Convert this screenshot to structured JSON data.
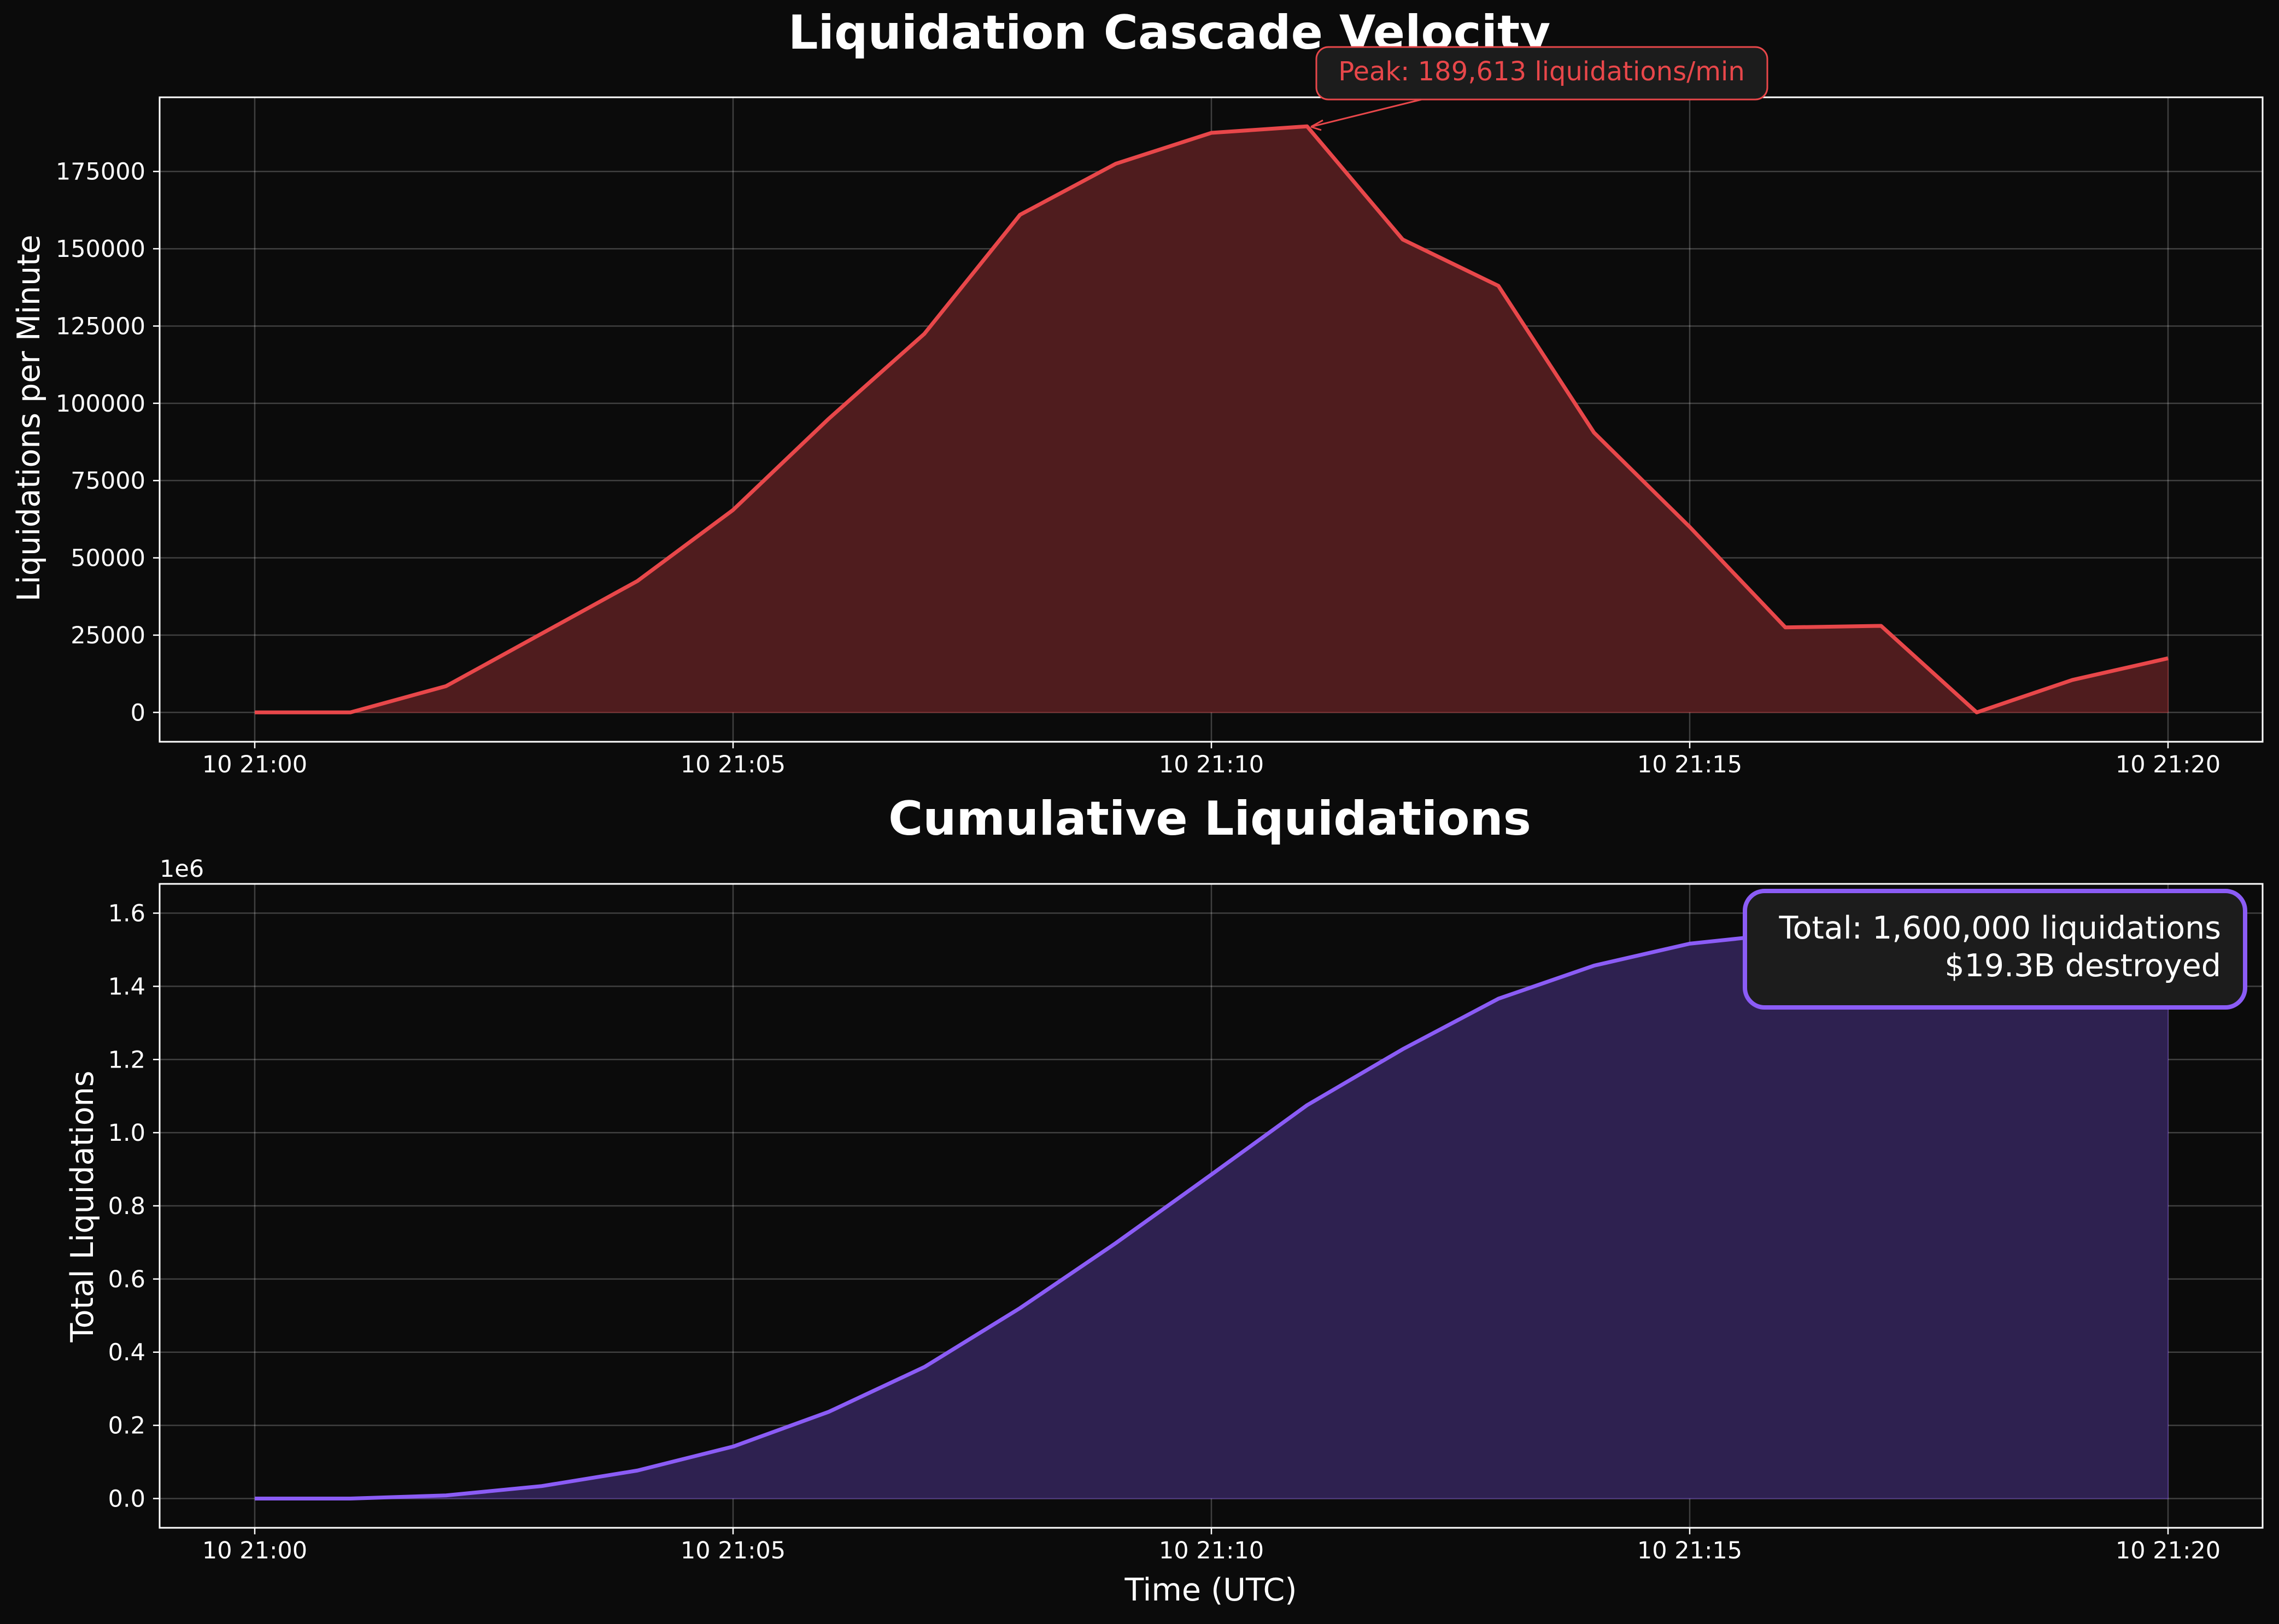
{
  "chart_data": [
    {
      "type": "area",
      "title": "Liquidation Cascade Velocity",
      "xlabel": "",
      "ylabel": "Liquidations per Minute",
      "x": [
        "10 21:00",
        "10 21:01",
        "10 21:02",
        "10 21:03",
        "10 21:04",
        "10 21:05",
        "10 21:06",
        "10 21:07",
        "10 21:08",
        "10 21:09",
        "10 21:10",
        "10 21:11",
        "10 21:12",
        "10 21:13",
        "10 21:14",
        "10 21:15",
        "10 21:16",
        "10 21:17",
        "10 21:18",
        "10 21:19",
        "10 21:20"
      ],
      "x_ticks": [
        "10 21:00",
        "10 21:05",
        "10 21:10",
        "10 21:15",
        "10 21:20"
      ],
      "ylim": [
        -9500,
        199000
      ],
      "y_ticks": [
        0,
        25000,
        50000,
        75000,
        100000,
        125000,
        150000,
        175000
      ],
      "series": [
        {
          "values": [
            0,
            0,
            8500,
            25500,
            42500,
            65500,
            95000,
            122500,
            161000,
            177500,
            187500,
            189613,
            153000,
            138000,
            90500,
            60000,
            27500,
            28000,
            0,
            10500,
            17500
          ]
        }
      ],
      "line_color": "#e8474a",
      "fill_color": "#4f1c1e",
      "annotation": {
        "text": "Peak: 189,613 liquidations/min",
        "x": "10 21:11",
        "y": 189613
      },
      "grid": true
    },
    {
      "type": "area",
      "title": "Cumulative Liquidations",
      "xlabel": "Time (UTC)",
      "ylabel": "Total Liquidations",
      "y_offset_label": "1e6",
      "x": [
        "10 21:00",
        "10 21:01",
        "10 21:02",
        "10 21:03",
        "10 21:04",
        "10 21:05",
        "10 21:06",
        "10 21:07",
        "10 21:08",
        "10 21:09",
        "10 21:10",
        "10 21:11",
        "10 21:12",
        "10 21:13",
        "10 21:14",
        "10 21:15",
        "10 21:16",
        "10 21:17",
        "10 21:18",
        "10 21:19",
        "10 21:20"
      ],
      "x_ticks": [
        "10 21:00",
        "10 21:05",
        "10 21:10",
        "10 21:15",
        "10 21:20"
      ],
      "ylim": [
        -0.08,
        1.68
      ],
      "y_ticks": [
        0.0,
        0.2,
        0.4,
        0.6,
        0.8,
        1.0,
        1.2,
        1.4,
        1.6
      ],
      "y_tick_labels": [
        "0.0",
        "0.2",
        "0.4",
        "0.6",
        "0.8",
        "1.0",
        "1.2",
        "1.4",
        "1.6"
      ],
      "series": [
        {
          "values": [
            0.0,
            0.0,
            0.0085,
            0.034,
            0.0765,
            0.142,
            0.237,
            0.3595,
            0.5205,
            0.698,
            0.8855,
            1.0751,
            1.2281,
            1.3661,
            1.4566,
            1.5166,
            1.5441,
            1.5721,
            1.5721,
            1.5826,
            1.6001
          ]
        }
      ],
      "line_color": "#8b5cf6",
      "fill_color": "#2e2150",
      "annotation": {
        "lines": [
          "Total: 1,600,000 liquidations",
          "$19.3B destroyed"
        ]
      },
      "grid": true
    }
  ]
}
